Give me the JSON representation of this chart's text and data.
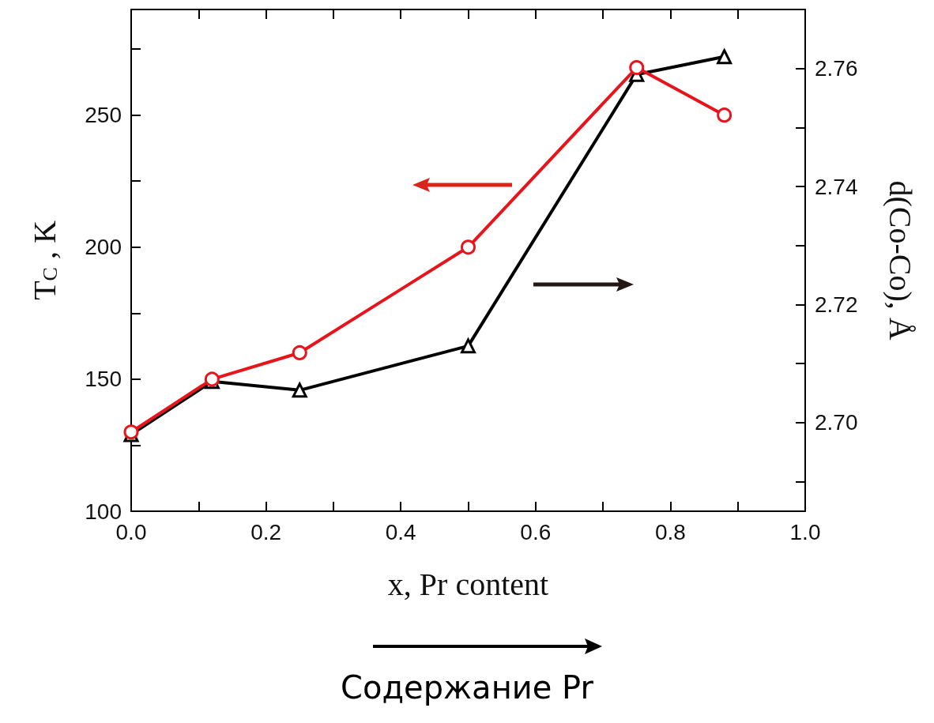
{
  "chart_data": {
    "type": "line",
    "xlabel": "x, Pr content",
    "ylabel": "T$_{C}$ , K",
    "y2label": "d(Co-Co), Å",
    "x": [
      0,
      0.12,
      0.25,
      0.5,
      0.75,
      0.88
    ],
    "series": [
      {
        "color": "#e8141b",
        "marker": "circle",
        "values": [
          130,
          150,
          160,
          200,
          268,
          250
        ]
      },
      {
        "color": "#000000",
        "marker": "triangle",
        "axis": "y2",
        "values": [
          2.698,
          2.707,
          2.7055,
          2.713,
          2.759,
          2.762
        ]
      }
    ],
    "xlim": [
      0,
      1
    ],
    "xticks": [
      {
        "value": 0,
        "label": "0.0"
      },
      {
        "value": 0.1,
        "label": null
      },
      {
        "value": 0.2,
        "label": "0.2"
      },
      {
        "value": 0.3,
        "label": null
      },
      {
        "value": 0.4,
        "label": "0.4"
      },
      {
        "value": 0.5,
        "label": null
      },
      {
        "value": 0.6,
        "label": "0.6"
      },
      {
        "value": 0.7,
        "label": null
      },
      {
        "value": 0.8,
        "label": "0.8"
      },
      {
        "value": 0.9,
        "label": null
      },
      {
        "value": 1,
        "label": "1.0"
      }
    ],
    "ylim": [
      100,
      290
    ],
    "yticks": [
      100,
      {
        "value": 125,
        "label": null
      },
      150,
      {
        "value": 175,
        "label": null
      },
      200,
      {
        "value": 225,
        "label": null
      },
      250,
      {
        "value": 275,
        "label": null
      }
    ],
    "y2lim": [
      2.685,
      2.77
    ],
    "y2ticks": [
      {
        "value": 2.69,
        "label": null
      },
      {
        "value": 2.7,
        "label": "2.70"
      },
      {
        "value": 2.71,
        "label": null
      },
      {
        "value": 2.72,
        "label": "2.72"
      },
      {
        "value": 2.73,
        "label": null
      },
      {
        "value": 2.74,
        "label": "2.74"
      },
      {
        "value": 2.75,
        "label": null
      },
      {
        "value": 2.76,
        "label": "2.76"
      }
    ],
    "grid": false,
    "line_style": "solid",
    "annotations": [
      "Содержание Pr"
    ]
  }
}
